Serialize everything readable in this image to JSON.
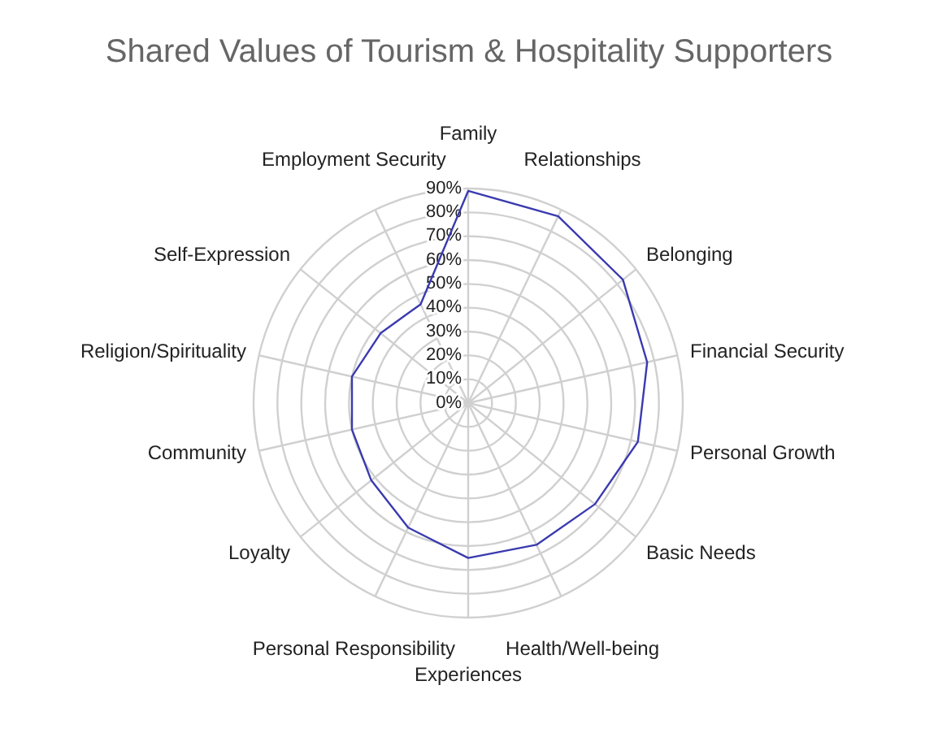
{
  "chart_data": {
    "type": "radar",
    "title": "Shared Values of Tourism & Hospitality Supporters",
    "categories": [
      "Family",
      "Relationships",
      "Belonging",
      "Financial Security",
      "Personal Growth",
      "Basic Needs",
      "Health/Well-being",
      "Experiences",
      "Personal Responsibility",
      "Loyalty",
      "Community",
      "Religion/Spirituality",
      "Self-Expression",
      "Employment Security"
    ],
    "series": [
      {
        "color": "#3a3ab0",
        "values": [
          89,
          87,
          83,
          77,
          73,
          68,
          66,
          65,
          58,
          52,
          50,
          50,
          47,
          46
        ]
      }
    ],
    "ylim": [
      0,
      90
    ],
    "yticks": [
      {
        "value": 0,
        "label": "0%"
      },
      {
        "value": 10,
        "label": "10%"
      },
      {
        "value": 20,
        "label": "20%"
      },
      {
        "value": 30,
        "label": "30%"
      },
      {
        "value": 40,
        "label": "40%"
      },
      {
        "value": 50,
        "label": "50%"
      },
      {
        "value": 60,
        "label": "60%"
      },
      {
        "value": 70,
        "label": "70%"
      },
      {
        "value": 80,
        "label": "80%"
      },
      {
        "value": 90,
        "label": "90%"
      }
    ],
    "grid": true,
    "marker": "none",
    "line_style": "solid"
  }
}
